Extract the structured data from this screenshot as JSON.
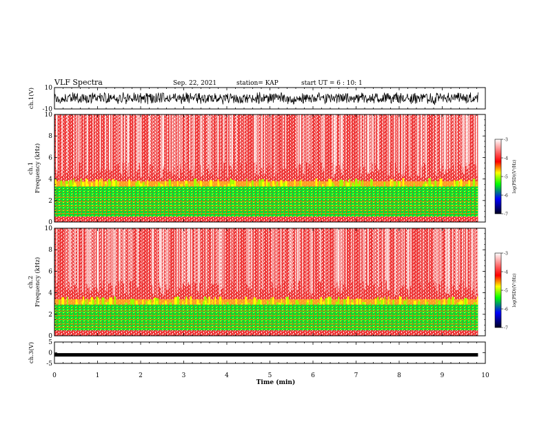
{
  "header": {
    "title": "VLF Spectra",
    "date": "Sep. 22, 2021",
    "station": "station= KAP",
    "start_ut": "start UT =  6 : 10: 1"
  },
  "chart_data": [
    {
      "type": "line",
      "name": "waveform-ch1",
      "ylabel": "ch.1(V)",
      "ylim": [
        -10,
        10
      ],
      "yticks": [
        "10",
        "-10"
      ],
      "xlim": [
        0,
        10
      ],
      "data_extent_min": 9.83,
      "envelope_approx": [
        -6,
        6
      ],
      "color": "#000000"
    },
    {
      "type": "heatmap",
      "name": "spectrogram-ch1",
      "ylabel": "Frequency (kHz)",
      "channel_label": "ch.1",
      "ylim": [
        0,
        10
      ],
      "yticks": [
        "0",
        "2",
        "4",
        "6",
        "8",
        "10"
      ],
      "xlim": [
        0,
        10
      ],
      "data_extent_min": 9.83,
      "band_green_top_khz": 3.3,
      "band_yellow_top_khz": 3.8,
      "colorbar": {
        "label": "log(PSD)(V²/Hz)",
        "range": [
          -7,
          -3
        ],
        "ticks": [
          "-3",
          "-4",
          "-5",
          "-6",
          "-7"
        ],
        "colors": [
          "#ffffff",
          "#ff0000",
          "#ffff00",
          "#00ff00",
          "#0000ff",
          "#000000"
        ]
      }
    },
    {
      "type": "heatmap",
      "name": "spectrogram-ch2",
      "ylabel": "Frequency (kHz)",
      "channel_label": "ch.2",
      "ylim": [
        0,
        10
      ],
      "yticks": [
        "0",
        "2",
        "4",
        "6",
        "8",
        "10"
      ],
      "xlim": [
        0,
        10
      ],
      "data_extent_min": 9.83,
      "band_green_top_khz": 2.9,
      "band_yellow_top_khz": 3.4,
      "colorbar": {
        "label": "log(PSD)(V²/Hz)",
        "range": [
          -7,
          -3
        ],
        "ticks": [
          "-3",
          "-4",
          "-5",
          "-6",
          "-7"
        ],
        "colors": [
          "#ffffff",
          "#ff0000",
          "#ffff00",
          "#00ff00",
          "#0000ff",
          "#000000"
        ]
      }
    },
    {
      "type": "line",
      "name": "waveform-ch3",
      "ylabel": "ch.3(V)",
      "ylim": [
        -5,
        5
      ],
      "yticks": [
        "5",
        "0",
        "-5"
      ],
      "xlim": [
        0,
        10
      ],
      "data_extent_min": 9.83,
      "constant_level_approx": -1,
      "color": "#000000"
    }
  ],
  "xaxis": {
    "label": "Time (min)",
    "ticks": [
      "0",
      "1",
      "2",
      "3",
      "4",
      "5",
      "6",
      "7",
      "8",
      "9",
      "10"
    ]
  }
}
